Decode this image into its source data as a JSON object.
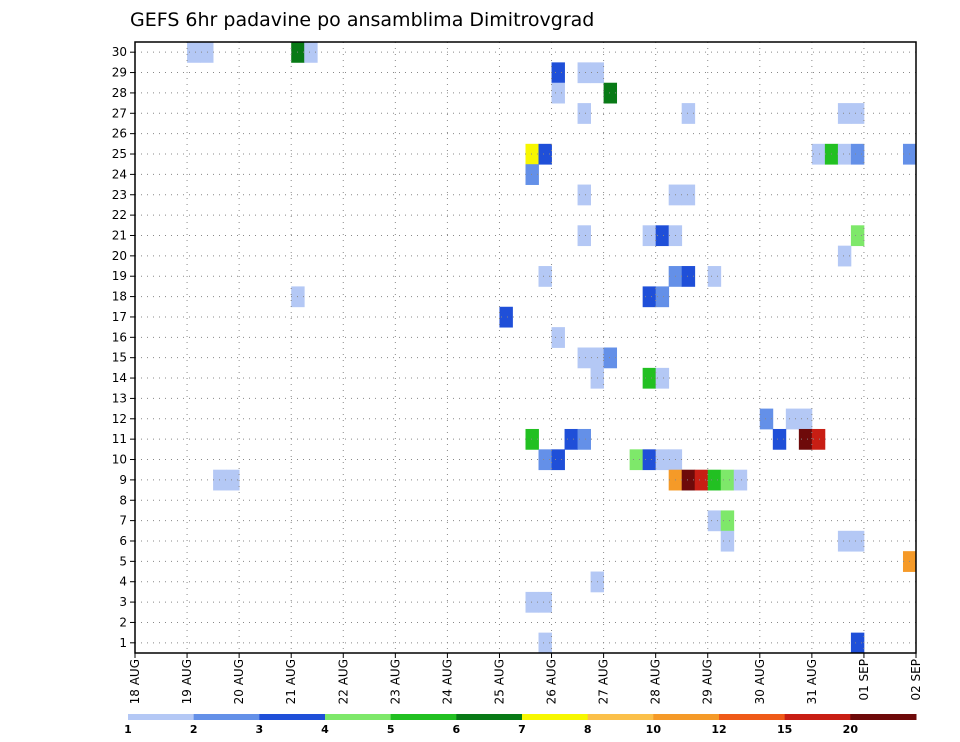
{
  "chart_data": {
    "type": "heatmap",
    "title": "GEFS 6hr padavine po ansamblima Dimitrovgrad",
    "x_tick_labels": [
      "18 AUG",
      "19 AUG",
      "20 AUG",
      "21 AUG",
      "22 AUG",
      "23 AUG",
      "24 AUG",
      "25 AUG",
      "26 AUG",
      "27 AUG",
      "28 AUG",
      "29 AUG",
      "30 AUG",
      "31 AUG",
      "01 SEP",
      "02 SEP"
    ],
    "y_tick_labels": [
      "1",
      "2",
      "3",
      "4",
      "5",
      "6",
      "7",
      "8",
      "9",
      "10",
      "11",
      "12",
      "13",
      "14",
      "15",
      "16",
      "17",
      "18",
      "19",
      "20",
      "21",
      "22",
      "23",
      "24",
      "25",
      "26",
      "27",
      "28",
      "29",
      "30"
    ],
    "x_unit": "6-hour step",
    "x_range": [
      0,
      60
    ],
    "y_range": [
      0.5,
      30.5
    ],
    "grid": true,
    "legend_position": "bottom",
    "legend": {
      "labels": [
        "1",
        "2",
        "3",
        "4",
        "5",
        "6",
        "7",
        "8",
        "10",
        "12",
        "15",
        "20"
      ],
      "colors": [
        "#b4c8f5",
        "#6490e8",
        "#1f4fd8",
        "#7ee86a",
        "#22c022",
        "#087a16",
        "#f7f700",
        "#fbc04a",
        "#f59a28",
        "#ef5a18",
        "#c81e14",
        "#6e0a0a"
      ]
    },
    "cells": [
      [
        8,
        9,
        1
      ],
      [
        7,
        10,
        1
      ],
      [
        6,
        11,
        1
      ],
      [
        5,
        11,
        1
      ],
      [
        4,
        11,
        1
      ],
      [
        3,
        11,
        1
      ],
      [
        2,
        11,
        2
      ],
      [
        1,
        11,
        1
      ],
      [
        32,
        26,
        3
      ],
      [
        31,
        26,
        1
      ],
      [
        32,
        25,
        1
      ],
      [
        30,
        25,
        2
      ],
      [
        27,
        25,
        5
      ],
      [
        28,
        25,
        5
      ],
      [
        29,
        25,
        2
      ],
      [
        30,
        24,
        4
      ],
      [
        35,
        21,
        2
      ],
      [
        36,
        21,
        4
      ],
      [
        37,
        21,
        5
      ],
      [
        35,
        21,
        2
      ],
      [
        44,
        22,
        2
      ],
      [
        43,
        22,
        1
      ],
      [
        42,
        22,
        2
      ],
      [
        41,
        22,
        1
      ],
      [
        39,
        22,
        1
      ],
      [
        34,
        20,
        4
      ],
      [
        35,
        19,
        1
      ],
      [
        34,
        19,
        1
      ],
      [
        33,
        19,
        1
      ],
      [
        32,
        19,
        1
      ],
      [
        31,
        19,
        1
      ],
      [
        27,
        17,
        4
      ],
      [
        22,
        14,
        1
      ],
      [
        23,
        12,
        1
      ],
      [
        24,
        12,
        1
      ],
      [
        25,
        12,
        2
      ],
      [
        21,
        11,
        2
      ],
      [
        19,
        8,
        3
      ],
      [
        20,
        8,
        3
      ],
      [
        18,
        7,
        2
      ],
      [
        17,
        6,
        1
      ],
      [
        16,
        3,
        1
      ],
      [
        15,
        3,
        2
      ],
      [
        14,
        3,
        1
      ],
      [
        13,
        3,
        1
      ],
      [
        12,
        1,
        1
      ],
      [
        11,
        1,
        1
      ],
      [
        10,
        1,
        1
      ],
      [
        9,
        1,
        1
      ],
      [
        8,
        1,
        1
      ],
      [
        7,
        1,
        1
      ],
      [
        6,
        1,
        1
      ],
      [
        5,
        1,
        1
      ],
      [
        4,
        1,
        1
      ],
      [
        3,
        1,
        1
      ],
      [
        2,
        1,
        1
      ],
      [
        1,
        1,
        1
      ]
    ],
    "cell_list": [
      {
        "x": 4.5,
        "y": 30,
        "v": 1
      },
      {
        "x": 5.5,
        "y": 30,
        "v": 1
      },
      {
        "x": 12.5,
        "y": 30,
        "v": 6
      },
      {
        "x": 13.5,
        "y": 30,
        "v": 1
      },
      {
        "x": 32.5,
        "y": 29,
        "v": 3
      },
      {
        "x": 34.5,
        "y": 29,
        "v": 1
      },
      {
        "x": 35.5,
        "y": 29,
        "v": 1
      },
      {
        "x": 32.5,
        "y": 28,
        "v": 1
      },
      {
        "x": 36.5,
        "y": 28,
        "v": 6
      },
      {
        "x": 34.5,
        "y": 27,
        "v": 1
      },
      {
        "x": 42.5,
        "y": 27,
        "v": 1
      },
      {
        "x": 54.5,
        "y": 27,
        "v": 1
      },
      {
        "x": 55.5,
        "y": 27,
        "v": 1
      },
      {
        "x": 30.5,
        "y": 25,
        "v": 7
      },
      {
        "x": 31.5,
        "y": 25,
        "v": 3
      },
      {
        "x": 52.5,
        "y": 25,
        "v": 1
      },
      {
        "x": 53.5,
        "y": 25,
        "v": 5
      },
      {
        "x": 54.5,
        "y": 25,
        "v": 1
      },
      {
        "x": 55.5,
        "y": 25,
        "v": 2
      },
      {
        "x": 59.5,
        "y": 25,
        "v": 2
      },
      {
        "x": 30.5,
        "y": 24,
        "v": 2
      },
      {
        "x": 34.5,
        "y": 23,
        "v": 1
      },
      {
        "x": 41.5,
        "y": 23,
        "v": 1
      },
      {
        "x": 42.5,
        "y": 23,
        "v": 1
      },
      {
        "x": 34.5,
        "y": 21,
        "v": 1
      },
      {
        "x": 39.5,
        "y": 21,
        "v": 1
      },
      {
        "x": 40.5,
        "y": 21,
        "v": 3
      },
      {
        "x": 41.5,
        "y": 21,
        "v": 1
      },
      {
        "x": 55.5,
        "y": 21,
        "v": 4
      },
      {
        "x": 54.5,
        "y": 20,
        "v": 1
      },
      {
        "x": 31.5,
        "y": 19,
        "v": 1
      },
      {
        "x": 41.5,
        "y": 19,
        "v": 2
      },
      {
        "x": 42.5,
        "y": 19,
        "v": 3
      },
      {
        "x": 44.5,
        "y": 19,
        "v": 1
      },
      {
        "x": 12.5,
        "y": 18,
        "v": 1
      },
      {
        "x": 39.5,
        "y": 18,
        "v": 3
      },
      {
        "x": 40.5,
        "y": 18,
        "v": 2
      },
      {
        "x": 28.5,
        "y": 17,
        "v": 3
      },
      {
        "x": 32.5,
        "y": 16,
        "v": 1
      },
      {
        "x": 34.5,
        "y": 15,
        "v": 1
      },
      {
        "x": 35.5,
        "y": 15,
        "v": 1
      },
      {
        "x": 36.5,
        "y": 15,
        "v": 2
      },
      {
        "x": 35.5,
        "y": 14,
        "v": 1
      },
      {
        "x": 39.5,
        "y": 14,
        "v": 5
      },
      {
        "x": 40.5,
        "y": 14,
        "v": 1
      },
      {
        "x": 48.5,
        "y": 12,
        "v": 2
      },
      {
        "x": 50.5,
        "y": 12,
        "v": 1
      },
      {
        "x": 51.5,
        "y": 12,
        "v": 1
      },
      {
        "x": 30.5,
        "y": 11,
        "v": 5
      },
      {
        "x": 33.5,
        "y": 11,
        "v": 3
      },
      {
        "x": 34.5,
        "y": 11,
        "v": 2
      },
      {
        "x": 49.5,
        "y": 11,
        "v": 3
      },
      {
        "x": 51.5,
        "y": 11,
        "v": 12
      },
      {
        "x": 52.5,
        "y": 11,
        "v": 11
      },
      {
        "x": 31.5,
        "y": 10,
        "v": 2
      },
      {
        "x": 32.5,
        "y": 10,
        "v": 3
      },
      {
        "x": 38.5,
        "y": 10,
        "v": 4
      },
      {
        "x": 39.5,
        "y": 10,
        "v": 3
      },
      {
        "x": 40.5,
        "y": 10,
        "v": 1
      },
      {
        "x": 41.5,
        "y": 10,
        "v": 1
      },
      {
        "x": 6.5,
        "y": 9,
        "v": 1
      },
      {
        "x": 7.5,
        "y": 9,
        "v": 1
      },
      {
        "x": 41.5,
        "y": 9,
        "v": 9
      },
      {
        "x": 42.5,
        "y": 9,
        "v": 12
      },
      {
        "x": 43.5,
        "y": 9,
        "v": 11
      },
      {
        "x": 44.5,
        "y": 9,
        "v": 5
      },
      {
        "x": 45.5,
        "y": 9,
        "v": 4
      },
      {
        "x": 46.5,
        "y": 9,
        "v": 1
      },
      {
        "x": 44.5,
        "y": 7,
        "v": 1
      },
      {
        "x": 45.5,
        "y": 7,
        "v": 4
      },
      {
        "x": 45.5,
        "y": 6,
        "v": 1
      },
      {
        "x": 54.5,
        "y": 6,
        "v": 1
      },
      {
        "x": 55.5,
        "y": 6,
        "v": 1
      },
      {
        "x": 59.5,
        "y": 5,
        "v": 9
      },
      {
        "x": 35.5,
        "y": 4,
        "v": 1
      },
      {
        "x": 30.5,
        "y": 3,
        "v": 1
      },
      {
        "x": 31.5,
        "y": 3,
        "v": 1
      },
      {
        "x": 31.5,
        "y": 1,
        "v": 1
      },
      {
        "x": 55.5,
        "y": 1,
        "v": 3
      }
    ]
  }
}
